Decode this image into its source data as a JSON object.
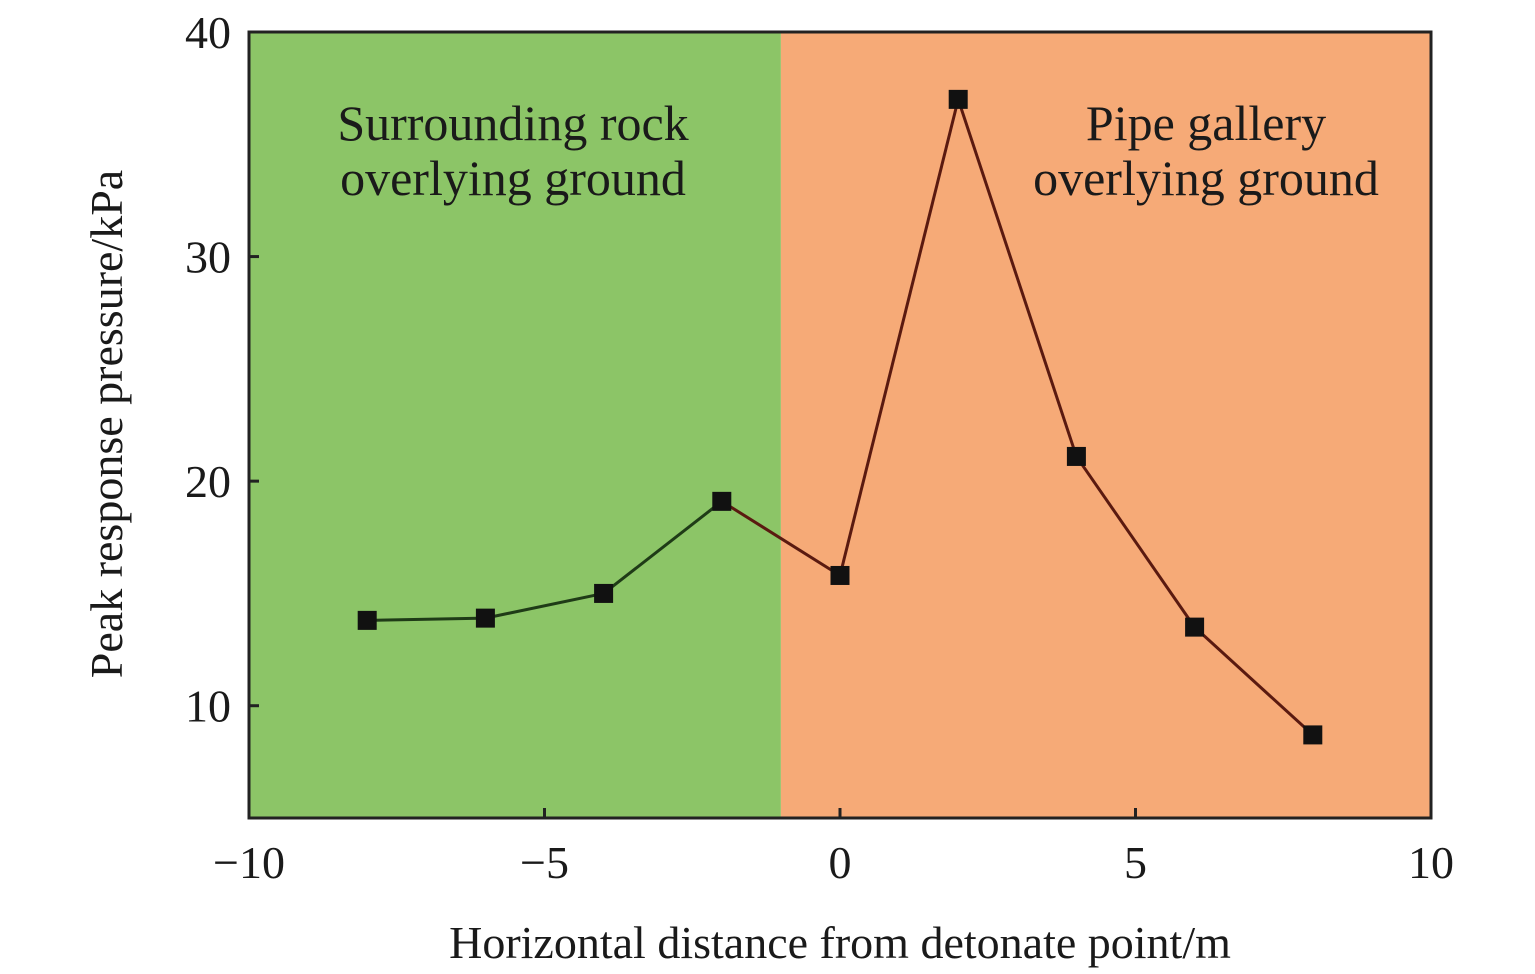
{
  "chart_data": {
    "type": "line",
    "title": "",
    "xlabel": "Horizontal distance from detonate point/m",
    "ylabel": "Peak response pressure/kPa",
    "xlim": [
      -10,
      10
    ],
    "ylim": [
      5,
      40
    ],
    "xticks": [
      -10,
      -5,
      0,
      5,
      10
    ],
    "xtick_labels": [
      "−10",
      "−5",
      "0",
      "5",
      "10"
    ],
    "yticks": [
      10,
      20,
      30,
      40
    ],
    "ytick_labels": [
      "10",
      "20",
      "30",
      "40"
    ],
    "grid": false,
    "legend": "none",
    "regions": [
      {
        "x_range": [
          -10,
          -1
        ],
        "color": "#8cc567",
        "label_lines": [
          "Surrounding rock",
          "overlying ground"
        ]
      },
      {
        "x_range": [
          -1,
          10
        ],
        "color": "#f6aa77",
        "label_lines": [
          "Pipe gallery",
          "overlying ground"
        ]
      }
    ],
    "series": [
      {
        "x": [
          -8,
          -6,
          -4,
          -2,
          0,
          2,
          4,
          6,
          8
        ],
        "y": [
          13.8,
          13.9,
          15.0,
          19.1,
          15.8,
          37.0,
          21.1,
          13.5,
          8.7
        ],
        "marker": "square",
        "color": "#111111"
      }
    ],
    "line_segment_colors": {
      "left": "#1f3b17",
      "right": "#5a1a10"
    }
  }
}
